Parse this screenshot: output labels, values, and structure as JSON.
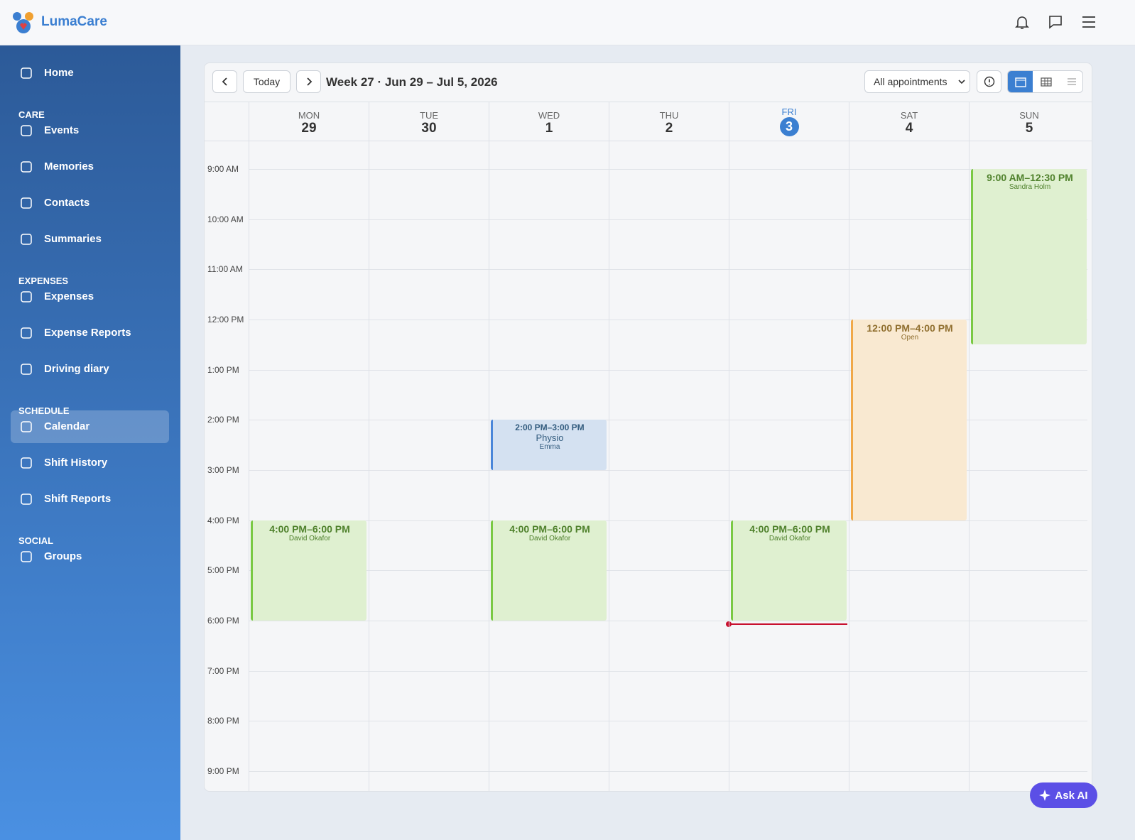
{
  "header": {
    "brand": "LumaCare"
  },
  "sidebar": {
    "home": "Home",
    "sections": [
      {
        "title": "CARE",
        "items": [
          "Events",
          "Memories",
          "Contacts",
          "Summaries"
        ]
      },
      {
        "title": "EXPENSES",
        "items": [
          "Expenses",
          "Expense Reports",
          "Driving diary"
        ]
      },
      {
        "title": "SCHEDULE",
        "items": [
          "Calendar",
          "Shift History",
          "Shift Reports"
        ]
      },
      {
        "title": "SOCIAL",
        "items": [
          "Groups"
        ]
      }
    ]
  },
  "toolbar": {
    "today": "Today",
    "week_label": "Week 27 · Jun 29 – Jul 5, 2026",
    "filter": "All appointments"
  },
  "calendar": {
    "hours": [
      "9:00 AM",
      "10:00 AM",
      "11:00 AM",
      "12:00 PM",
      "1:00 PM",
      "2:00 PM",
      "3:00 PM",
      "4:00 PM",
      "5:00 PM",
      "6:00 PM",
      "7:00 PM",
      "8:00 PM",
      "9:00 PM"
    ],
    "days": [
      {
        "dow": "MON",
        "date": "29",
        "events": [
          {
            "time": "4:00 PM–6:00 PM",
            "person": "David Okafor",
            "color": "#7ac943"
          }
        ]
      },
      {
        "dow": "TUE",
        "date": "30",
        "events": []
      },
      {
        "dow": "WED",
        "date": "1",
        "events": [
          {
            "time": "2:00 PM–3:00 PM",
            "title": "Physio",
            "person": "Emma",
            "color": "#4a86d9"
          },
          {
            "time": "4:00 PM–6:00 PM",
            "person": "David Okafor",
            "color": "#7ac943"
          }
        ]
      },
      {
        "dow": "THU",
        "date": "2",
        "events": []
      },
      {
        "dow": "FRI",
        "date": "3",
        "today": true,
        "events": [
          {
            "time": "4:00 PM–6:00 PM",
            "person": "David Okafor",
            "color": "#7ac943"
          }
        ]
      },
      {
        "dow": "SAT",
        "date": "4",
        "events": [
          {
            "time": "12:00 PM–4:00 PM",
            "person": "Open",
            "color": "#f0a848"
          }
        ]
      },
      {
        "dow": "SUN",
        "date": "5",
        "events": [
          {
            "time": "9:00 AM–12:30 PM",
            "person": "Sandra Holm",
            "color": "#7ac943"
          }
        ]
      }
    ]
  },
  "ask_ai": "Ask AI"
}
